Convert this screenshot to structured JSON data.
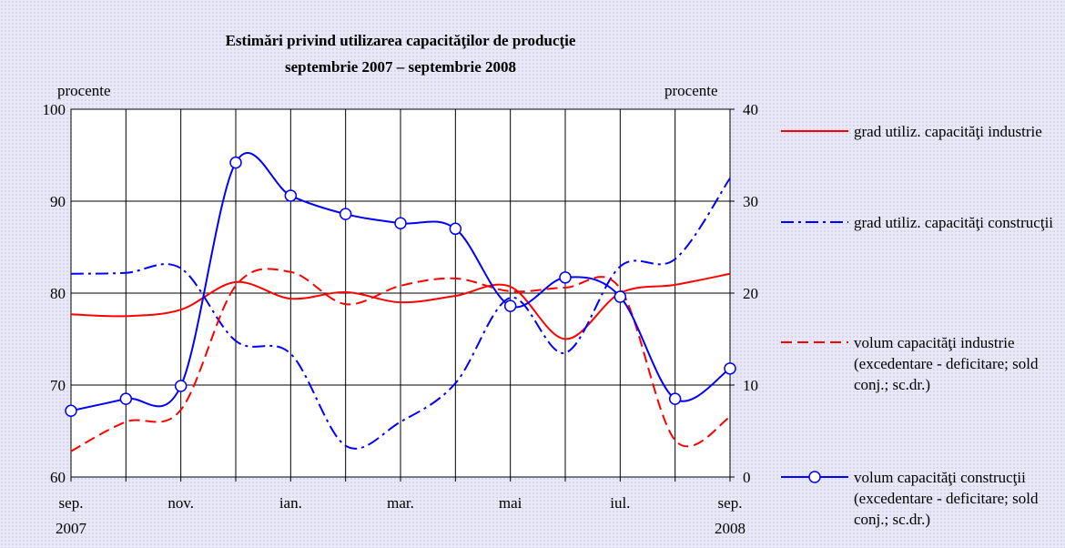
{
  "chart_data": {
    "type": "line",
    "title": "Estimări privind utilizarea capacităţilor de producţie",
    "subtitle": "septembrie 2007 – septembrie 2008",
    "y_axis_label": "procente",
    "y2_axis_label": "procente",
    "categories": [
      "sep.",
      null,
      "nov.",
      null,
      "ian.",
      null,
      "mar.",
      null,
      "mai",
      null,
      "iul.",
      null,
      "sep."
    ],
    "year_labels": [
      "2007",
      "2008"
    ],
    "ylim": [
      60,
      100
    ],
    "yticks": [
      60,
      70,
      80,
      90,
      100
    ],
    "y2lim": [
      0,
      40
    ],
    "y2ticks": [
      0,
      10,
      20,
      30,
      40
    ],
    "grid": true,
    "series": [
      {
        "name": "grad utiliz. capacităţi industrie",
        "color": "#ff0000",
        "style": "solid",
        "axis": "y",
        "values": [
          77.7,
          77.5,
          78.2,
          81.2,
          79.4,
          80.1,
          79.0,
          79.7,
          80.7,
          75.0,
          80.0,
          80.9,
          82.1
        ]
      },
      {
        "name": "grad utiliz. capacităţi construcţii",
        "color": "#0000ff",
        "style": "dashdot",
        "axis": "y",
        "values": [
          82.1,
          82.2,
          82.7,
          74.8,
          73.4,
          63.4,
          66.0,
          70.2,
          79.5,
          73.5,
          82.9,
          83.7,
          92.5
        ]
      },
      {
        "name": "volum capacităţi industrie (excedentare - deficitare; sold conj.; sc.dr.)",
        "color": "#ff0000",
        "style": "dashed",
        "axis": "y2",
        "values": [
          2.8,
          6.0,
          7.3,
          20.8,
          22.3,
          18.8,
          20.8,
          21.6,
          20.2,
          20.6,
          20.5,
          4.0,
          6.5
        ]
      },
      {
        "name": "volum capacităţi construcţii (excedentare - deficitare; sold conj.; sc.dr.)",
        "color": "#0000ff",
        "style": "marker",
        "axis": "y2",
        "values": [
          7.2,
          8.5,
          9.9,
          34.2,
          30.6,
          28.6,
          27.6,
          27.0,
          18.6,
          21.7,
          19.6,
          8.5,
          11.8
        ]
      }
    ]
  }
}
